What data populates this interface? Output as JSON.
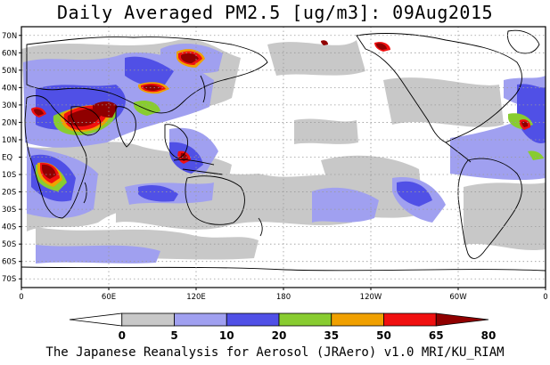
{
  "title": "Daily Averaged PM2.5 [ug/m3]: 09Aug2015",
  "footer": "The Japanese Reanalysis for Aerosol (JRAero) v1.0 MRI/KU_RIAM",
  "lat_labels": [
    "70N",
    "60N",
    "50N",
    "40N",
    "30N",
    "20N",
    "10N",
    "EQ",
    "10S",
    "20S",
    "30S",
    "40S",
    "50S",
    "60S",
    "70S"
  ],
  "lon_labels": [
    "0",
    "60E",
    "120E",
    "180",
    "120W",
    "60W",
    "0"
  ],
  "colorbar": {
    "levels": [
      "0",
      "5",
      "10",
      "20",
      "35",
      "50",
      "65",
      "80"
    ],
    "colors": [
      "#ffffff",
      "#c8c8c8",
      "#a0a0f0",
      "#5050e6",
      "#88cc30",
      "#f0a000",
      "#f01010",
      "#900000"
    ]
  },
  "colors": {
    "frame": "#000000",
    "grid": "#9a9a9a",
    "coast": "#000000"
  }
}
